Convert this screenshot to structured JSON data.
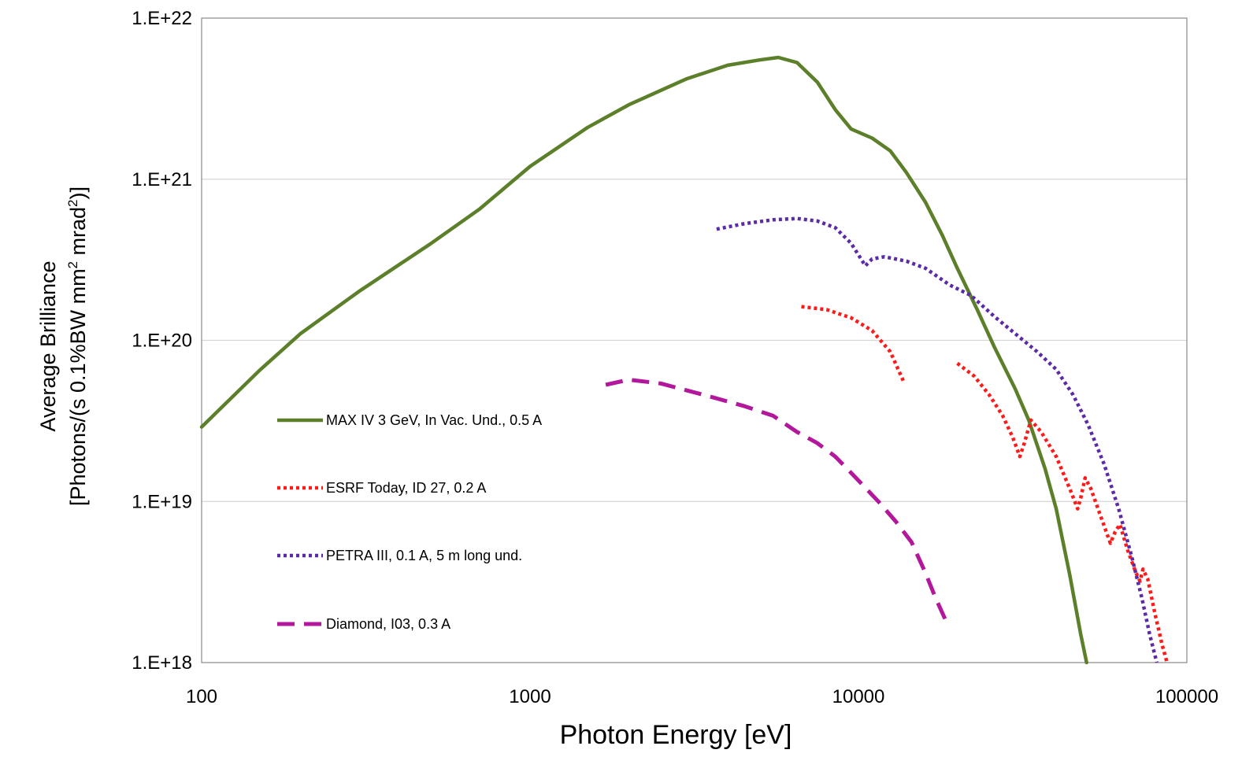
{
  "chart_data": {
    "type": "line",
    "xscale": "log",
    "yscale": "log",
    "xlim": [
      100,
      100000
    ],
    "ylim": [
      1e+18,
      1e+22
    ],
    "xticks": [
      100,
      1000,
      10000,
      100000
    ],
    "xtick_labels": [
      "100",
      "1000",
      "10000",
      "100000"
    ],
    "yticks": [
      1e+18,
      1e+19,
      1e+20,
      1e+21,
      1e+22
    ],
    "ytick_labels": [
      "1.E+18",
      "1.E+19",
      "1.E+20",
      "1.E+21",
      "1.E+22"
    ],
    "xlabel": "Photon Energy [eV]",
    "ylabel_line1": "Average Brilliance",
    "ylabel_line2_prefix": "[Photons/(s 0.1%BW mm",
    "ylabel_line2_sup1": "2",
    "ylabel_line2_mid": " mrad",
    "ylabel_line2_sup2": "2",
    "ylabel_line2_suffix": ")]",
    "grid": "horizontal",
    "legend_position": "left-inside",
    "series": [
      {
        "name": "MAX IV 3 GeV, In Vac. Und., 0.5 A",
        "color": "#5c7f2a",
        "style": "solid",
        "segments": [
          [
            [
              100,
              2.9e+19
            ],
            [
              150,
              6.5e+19
            ],
            [
              200,
              1.1e+20
            ],
            [
              300,
              2e+20
            ],
            [
              500,
              4e+20
            ],
            [
              700,
              6.5e+20
            ],
            [
              1000,
              1.2e+21
            ],
            [
              1500,
              2.1e+21
            ],
            [
              2000,
              2.9e+21
            ],
            [
              3000,
              4.2e+21
            ],
            [
              4000,
              5.1e+21
            ],
            [
              5000,
              5.5e+21
            ],
            [
              5700,
              5.7e+21
            ],
            [
              6500,
              5.3e+21
            ],
            [
              7500,
              4e+21
            ],
            [
              8500,
              2.7e+21
            ],
            [
              9500,
              2.05e+21
            ],
            [
              11000,
              1.8e+21
            ],
            [
              12500,
              1.5e+21
            ],
            [
              14000,
              1.1e+21
            ],
            [
              16000,
              7.2e+20
            ],
            [
              18000,
              4.5e+20
            ],
            [
              20000,
              2.8e+20
            ],
            [
              23000,
              1.55e+20
            ],
            [
              26000,
              9e+19
            ],
            [
              30000,
              5e+19
            ],
            [
              33000,
              3.2e+19
            ],
            [
              37000,
              1.6e+19
            ],
            [
              40000,
              9e+18
            ],
            [
              44000,
              3.5e+18
            ],
            [
              47500,
              1.5e+18
            ],
            [
              49500,
              1e+18
            ]
          ]
        ]
      },
      {
        "name": "ESRF Today, ID 27, 0.2 A",
        "color": "#ff1a1a",
        "style": "dotted",
        "segments": [
          [
            [
              6700,
              1.62e+20
            ],
            [
              8000,
              1.55e+20
            ],
            [
              9500,
              1.38e+20
            ],
            [
              11000,
              1.15e+20
            ],
            [
              12500,
              8.5e+19
            ],
            [
              13700,
              5.6e+19
            ]
          ],
          [
            [
              20000,
              7.2e+19
            ],
            [
              22500,
              6e+19
            ],
            [
              25000,
              4.6e+19
            ],
            [
              27500,
              3.4e+19
            ],
            [
              29500,
              2.5e+19
            ],
            [
              31000,
              1.9e+19
            ],
            [
              32000,
              2.3e+19
            ],
            [
              33500,
              3.2e+19
            ],
            [
              36000,
              2.7e+19
            ],
            [
              40000,
              1.9e+19
            ],
            [
              44000,
              1.2e+19
            ],
            [
              46500,
              9e+18
            ],
            [
              47500,
              1.05e+19
            ],
            [
              49000,
              1.4e+19
            ],
            [
              51000,
              1.2e+19
            ],
            [
              55000,
              7.8e+18
            ],
            [
              58500,
              5.5e+18
            ],
            [
              60500,
              6.5e+18
            ],
            [
              62500,
              7.2e+18
            ],
            [
              66000,
              5e+18
            ],
            [
              70000,
              3.6e+18
            ],
            [
              72000,
              3.2e+18
            ],
            [
              73500,
              3.8e+18
            ],
            [
              76000,
              3.3e+18
            ],
            [
              80000,
              2e+18
            ],
            [
              84000,
              1.3e+18
            ],
            [
              87000,
              1e+18
            ]
          ]
        ]
      },
      {
        "name": "PETRA III, 0.1 A,  5 m long und.",
        "color": "#5b2aa6",
        "style": "dotted",
        "segments": [
          [
            [
              3700,
              4.9e+20
            ],
            [
              4500,
              5.3e+20
            ],
            [
              5500,
              5.6e+20
            ],
            [
              6500,
              5.7e+20
            ],
            [
              7500,
              5.5e+20
            ],
            [
              8500,
              5e+20
            ],
            [
              9500,
              4e+20
            ],
            [
              10500,
              2.9e+20
            ],
            [
              11000,
              3.2e+20
            ],
            [
              12000,
              3.3e+20
            ],
            [
              14000,
              3.1e+20
            ],
            [
              16000,
              2.8e+20
            ],
            [
              19000,
              2.2e+20
            ],
            [
              22000,
              1.9e+20
            ],
            [
              26000,
              1.4e+20
            ],
            [
              30000,
              1.1e+20
            ],
            [
              35000,
              8.5e+19
            ],
            [
              40000,
              6.6e+19
            ],
            [
              45000,
              4.6e+19
            ],
            [
              50000,
              3e+19
            ],
            [
              56000,
              1.7e+19
            ],
            [
              62000,
              9e+18
            ],
            [
              68000,
              4.5e+18
            ],
            [
              73000,
              2.5e+18
            ],
            [
              77000,
              1.5e+18
            ],
            [
              81000,
              1e+18
            ]
          ]
        ]
      },
      {
        "name": "Diamond, I03, 0.3 A",
        "color": "#b3179b",
        "style": "dashed",
        "segments": [
          [
            [
              1700,
              5.3e+19
            ],
            [
              2000,
              5.7e+19
            ],
            [
              2500,
              5.4e+19
            ],
            [
              3500,
              4.5e+19
            ],
            [
              4500,
              3.9e+19
            ],
            [
              5500,
              3.4e+19
            ],
            [
              6500,
              2.7e+19
            ],
            [
              7500,
              2.3e+19
            ],
            [
              8500,
              1.9e+19
            ],
            [
              10000,
              1.35e+19
            ],
            [
              11500,
              1e+19
            ],
            [
              13000,
              7.5e+18
            ],
            [
              14500,
              5.6e+18
            ],
            [
              16000,
              3.6e+18
            ],
            [
              17200,
              2.5e+18
            ],
            [
              18500,
              1.8e+18
            ]
          ]
        ]
      }
    ]
  }
}
